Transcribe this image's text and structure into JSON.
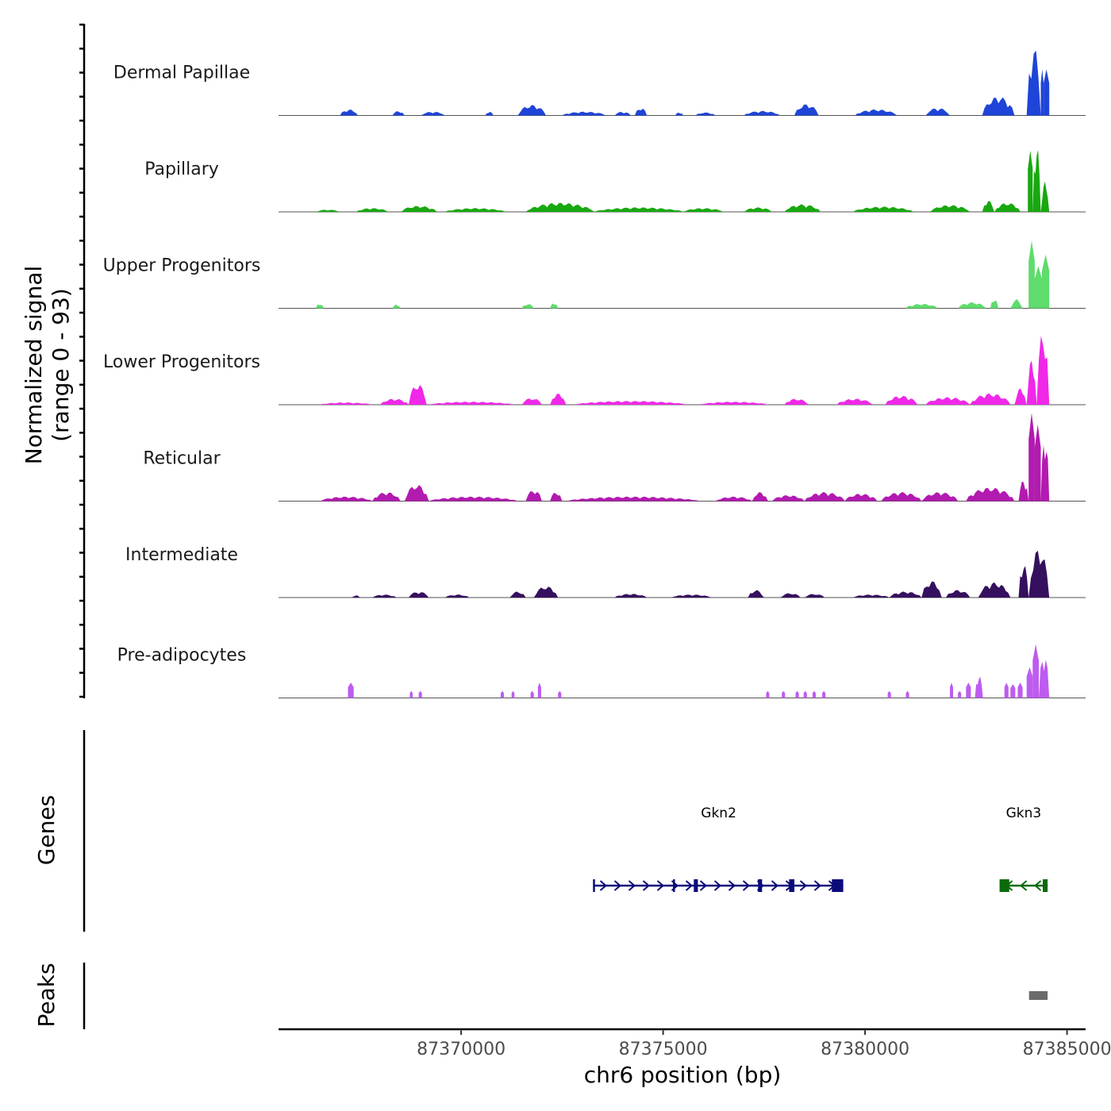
{
  "chart_data": {
    "type": "area",
    "title": "",
    "chromosome": "chr6",
    "xlabel": "chr6 position (bp)",
    "ylabel": "Normalized signal",
    "ylabel_range": "(range 0 - 93)",
    "ylim": [
      0,
      93
    ],
    "xlim": [
      87365480,
      87385460
    ],
    "x_ticks": [
      87370000,
      87375000,
      87380000,
      87385000
    ],
    "x_tick_labels": [
      "87370000",
      "87375000",
      "87380000",
      "87385000"
    ],
    "series": [
      {
        "name": "Dermal Papillae",
        "color": "#1f45d8",
        "peaks": [
          [
            87367000,
            87367450,
            8
          ],
          [
            87368300,
            87368600,
            6
          ],
          [
            87369000,
            87369600,
            5
          ],
          [
            87370600,
            87370800,
            5
          ],
          [
            87371400,
            87372100,
            14
          ],
          [
            87372500,
            87373600,
            5
          ],
          [
            87373800,
            87374200,
            5
          ],
          [
            87374300,
            87374600,
            10
          ],
          [
            87375300,
            87375500,
            4
          ],
          [
            87375800,
            87376300,
            4
          ],
          [
            87377000,
            87377900,
            6
          ],
          [
            87378250,
            87378850,
            15
          ],
          [
            87379750,
            87380800,
            8
          ],
          [
            87381500,
            87382100,
            10
          ],
          [
            87382900,
            87383700,
            25
          ],
          [
            87384000,
            87384350,
            92
          ],
          [
            87384350,
            87384420,
            60
          ],
          [
            87384420,
            87384560,
            60
          ]
        ]
      },
      {
        "name": "Papillary",
        "color": "#18a810",
        "peaks": [
          [
            87366400,
            87367000,
            3
          ],
          [
            87367400,
            87368200,
            5
          ],
          [
            87368500,
            87369400,
            8
          ],
          [
            87369600,
            87371100,
            5
          ],
          [
            87371600,
            87373300,
            12
          ],
          [
            87373300,
            87375500,
            6
          ],
          [
            87375500,
            87376500,
            5
          ],
          [
            87377000,
            87377700,
            6
          ],
          [
            87378000,
            87378900,
            10
          ],
          [
            87379700,
            87381200,
            7
          ],
          [
            87381600,
            87382600,
            9
          ],
          [
            87382900,
            87383200,
            15
          ],
          [
            87383200,
            87383850,
            12
          ],
          [
            87384030,
            87384150,
            80
          ],
          [
            87384150,
            87384350,
            88
          ],
          [
            87384350,
            87384560,
            40
          ]
        ]
      },
      {
        "name": "Upper Progenitors",
        "color": "#5edc6c",
        "peaks": [
          [
            87366400,
            87366600,
            6
          ],
          [
            87368300,
            87368500,
            5
          ],
          [
            87371500,
            87371800,
            6
          ],
          [
            87372200,
            87372400,
            7
          ],
          [
            87381000,
            87381800,
            6
          ],
          [
            87382300,
            87383000,
            8
          ],
          [
            87383100,
            87383300,
            12
          ],
          [
            87383600,
            87383900,
            12
          ],
          [
            87384050,
            87384200,
            88
          ],
          [
            87384200,
            87384380,
            55
          ],
          [
            87384380,
            87384560,
            70
          ]
        ]
      },
      {
        "name": "Lower Progenitors",
        "color": "#f028e8",
        "peaks": [
          [
            87366500,
            87367800,
            3
          ],
          [
            87368000,
            87368700,
            8
          ],
          [
            87368700,
            87369150,
            28
          ],
          [
            87369200,
            87371300,
            4
          ],
          [
            87371500,
            87372000,
            9
          ],
          [
            87372200,
            87372600,
            15
          ],
          [
            87372800,
            87375600,
            5
          ],
          [
            87375900,
            87377600,
            4
          ],
          [
            87378000,
            87378600,
            8
          ],
          [
            87379300,
            87380200,
            8
          ],
          [
            87380500,
            87381300,
            12
          ],
          [
            87381500,
            87382600,
            10
          ],
          [
            87382600,
            87383600,
            15
          ],
          [
            87383700,
            87384000,
            22
          ],
          [
            87384000,
            87384250,
            60
          ],
          [
            87384250,
            87384560,
            98
          ]
        ]
      },
      {
        "name": "Reticular",
        "color": "#b21ab0",
        "peaks": [
          [
            87366500,
            87367800,
            6
          ],
          [
            87367800,
            87368500,
            12
          ],
          [
            87368600,
            87369200,
            22
          ],
          [
            87369200,
            87371400,
            6
          ],
          [
            87371600,
            87372000,
            15
          ],
          [
            87372200,
            87372500,
            12
          ],
          [
            87372600,
            87375900,
            6
          ],
          [
            87376300,
            87377200,
            6
          ],
          [
            87377200,
            87377600,
            12
          ],
          [
            87377700,
            87378500,
            8
          ],
          [
            87378500,
            87379500,
            12
          ],
          [
            87379500,
            87380300,
            10
          ],
          [
            87380400,
            87381400,
            12
          ],
          [
            87381400,
            87382300,
            12
          ],
          [
            87382500,
            87383700,
            18
          ],
          [
            87383800,
            87384050,
            28
          ],
          [
            87384050,
            87384200,
            115
          ],
          [
            87384200,
            87384350,
            100
          ],
          [
            87384350,
            87384560,
            85
          ]
        ]
      },
      {
        "name": "Intermediate",
        "color": "#35105e",
        "peaks": [
          [
            87367300,
            87367500,
            3
          ],
          [
            87367800,
            87368400,
            4
          ],
          [
            87368700,
            87369200,
            8
          ],
          [
            87369600,
            87370200,
            4
          ],
          [
            87371200,
            87371600,
            8
          ],
          [
            87371800,
            87372400,
            15
          ],
          [
            87373800,
            87374600,
            5
          ],
          [
            87375200,
            87376200,
            4
          ],
          [
            87377100,
            87377500,
            10
          ],
          [
            87377900,
            87378400,
            6
          ],
          [
            87378500,
            87379000,
            5
          ],
          [
            87379700,
            87380600,
            4
          ],
          [
            87380600,
            87381400,
            8
          ],
          [
            87381400,
            87381900,
            22
          ],
          [
            87382000,
            87382600,
            10
          ],
          [
            87382800,
            87383600,
            20
          ],
          [
            87383800,
            87384050,
            45
          ],
          [
            87384050,
            87384560,
            65
          ]
        ]
      },
      {
        "name": "Pre-adipocytes",
        "color": "#be5cf0",
        "peaks": [
          [
            87367200,
            87367340,
            20
          ],
          [
            87368730,
            87368800,
            9
          ],
          [
            87368950,
            87369030,
            9
          ],
          [
            87370980,
            87371060,
            9
          ],
          [
            87371250,
            87371320,
            9
          ],
          [
            87371720,
            87371800,
            9
          ],
          [
            87371900,
            87371980,
            20
          ],
          [
            87372400,
            87372480,
            9
          ],
          [
            87377550,
            87377630,
            9
          ],
          [
            87377940,
            87378020,
            9
          ],
          [
            87378280,
            87378360,
            9
          ],
          [
            87378480,
            87378560,
            9
          ],
          [
            87378700,
            87378780,
            9
          ],
          [
            87378940,
            87379020,
            9
          ],
          [
            87380560,
            87380640,
            9
          ],
          [
            87381010,
            87381090,
            9
          ],
          [
            87382100,
            87382180,
            20
          ],
          [
            87382300,
            87382380,
            9
          ],
          [
            87382500,
            87382620,
            20
          ],
          [
            87382720,
            87382920,
            30
          ],
          [
            87383450,
            87383550,
            20
          ],
          [
            87383600,
            87383720,
            18
          ],
          [
            87383780,
            87383900,
            20
          ],
          [
            87384000,
            87384150,
            40
          ],
          [
            87384150,
            87384300,
            70
          ],
          [
            87384300,
            87384560,
            60
          ]
        ]
      }
    ]
  },
  "genes": {
    "title": "Genes",
    "items": [
      {
        "name": "Gkn2",
        "start": 87373290,
        "end": 87379460,
        "strand": "+",
        "color": "#0b0b7a",
        "exons": [
          [
            87375760,
            87375860
          ],
          [
            87377350,
            87377450
          ],
          [
            87378120,
            87378250
          ],
          [
            87379180,
            87379460
          ]
        ],
        "small_exons": [
          87373290,
          87375270
        ]
      },
      {
        "name": "Gkn3",
        "start": 87383330,
        "end": 87384520,
        "strand": "-",
        "color": "#0b6b0b",
        "exons": [
          [
            87383330,
            87383570
          ],
          [
            87384400,
            87384520
          ]
        ],
        "small_exons": []
      }
    ]
  },
  "peaks_track": {
    "title": "Peaks",
    "color": "#6b6b6b",
    "regions": [
      [
        87384060,
        87384520
      ]
    ]
  }
}
